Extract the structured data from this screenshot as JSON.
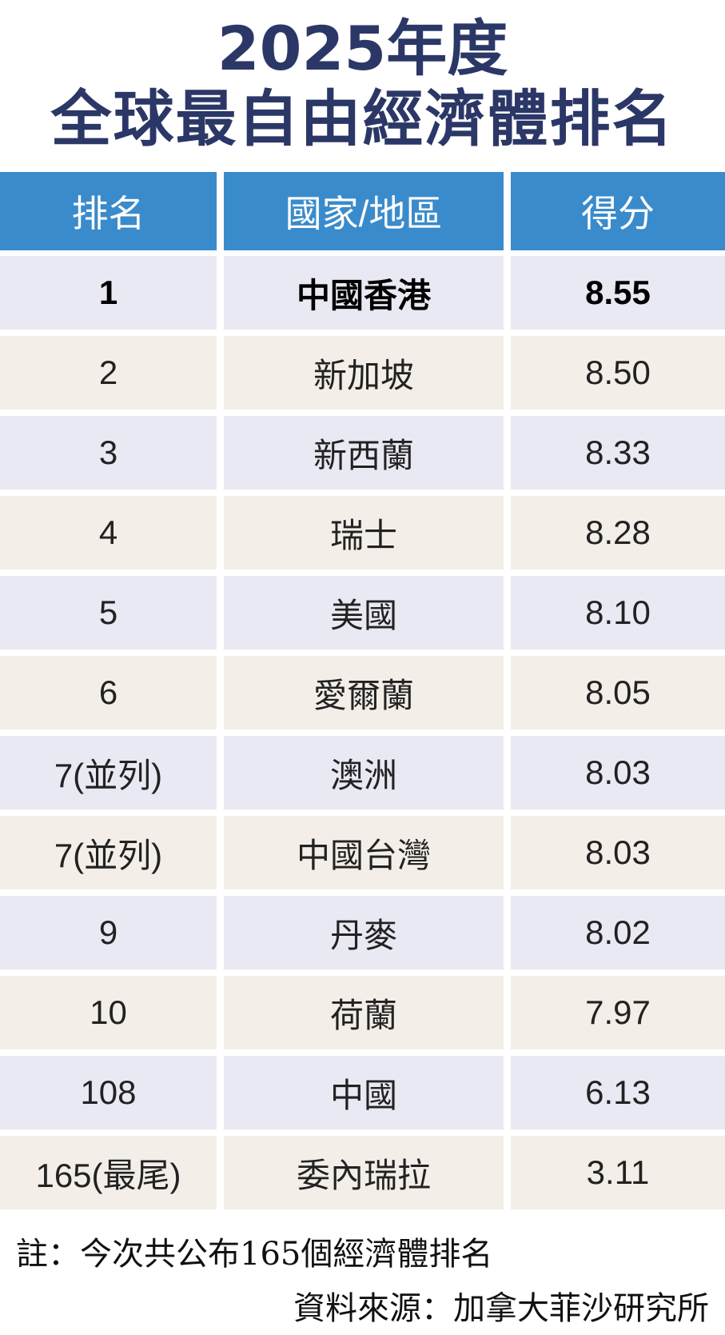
{
  "title": {
    "line1": "2025年度",
    "line2": "全球最自由經濟體排名"
  },
  "colors": {
    "title": "#2b3766",
    "header_bg": "#3a8bcb",
    "row_odd": "#e9e9f4",
    "row_even": "#f3efe8"
  },
  "table": {
    "headers": [
      "排名",
      "國家/地區",
      "得分"
    ],
    "rows": [
      {
        "rank": "1",
        "name": "中國香港",
        "score": "8.55"
      },
      {
        "rank": "2",
        "name": "新加坡",
        "score": "8.50"
      },
      {
        "rank": "3",
        "name": "新西蘭",
        "score": "8.33"
      },
      {
        "rank": "4",
        "name": "瑞士",
        "score": "8.28"
      },
      {
        "rank": "5",
        "name": "美國",
        "score": "8.10"
      },
      {
        "rank": "6",
        "name": "愛爾蘭",
        "score": "8.05"
      },
      {
        "rank": "7(並列)",
        "name": "澳洲",
        "score": "8.03"
      },
      {
        "rank": "7(並列)",
        "name": "中國台灣",
        "score": "8.03"
      },
      {
        "rank": "9",
        "name": "丹麥",
        "score": "8.02"
      },
      {
        "rank": "10",
        "name": "荷蘭",
        "score": "7.97"
      },
      {
        "rank": "108",
        "name": "中國",
        "score": "6.13"
      },
      {
        "rank": "165(最尾)",
        "name": "委內瑞拉",
        "score": "3.11"
      }
    ]
  },
  "notes": {
    "note": "註：今次共公布165個經濟體排名",
    "source": "資料來源：加拿大菲沙研究所"
  }
}
